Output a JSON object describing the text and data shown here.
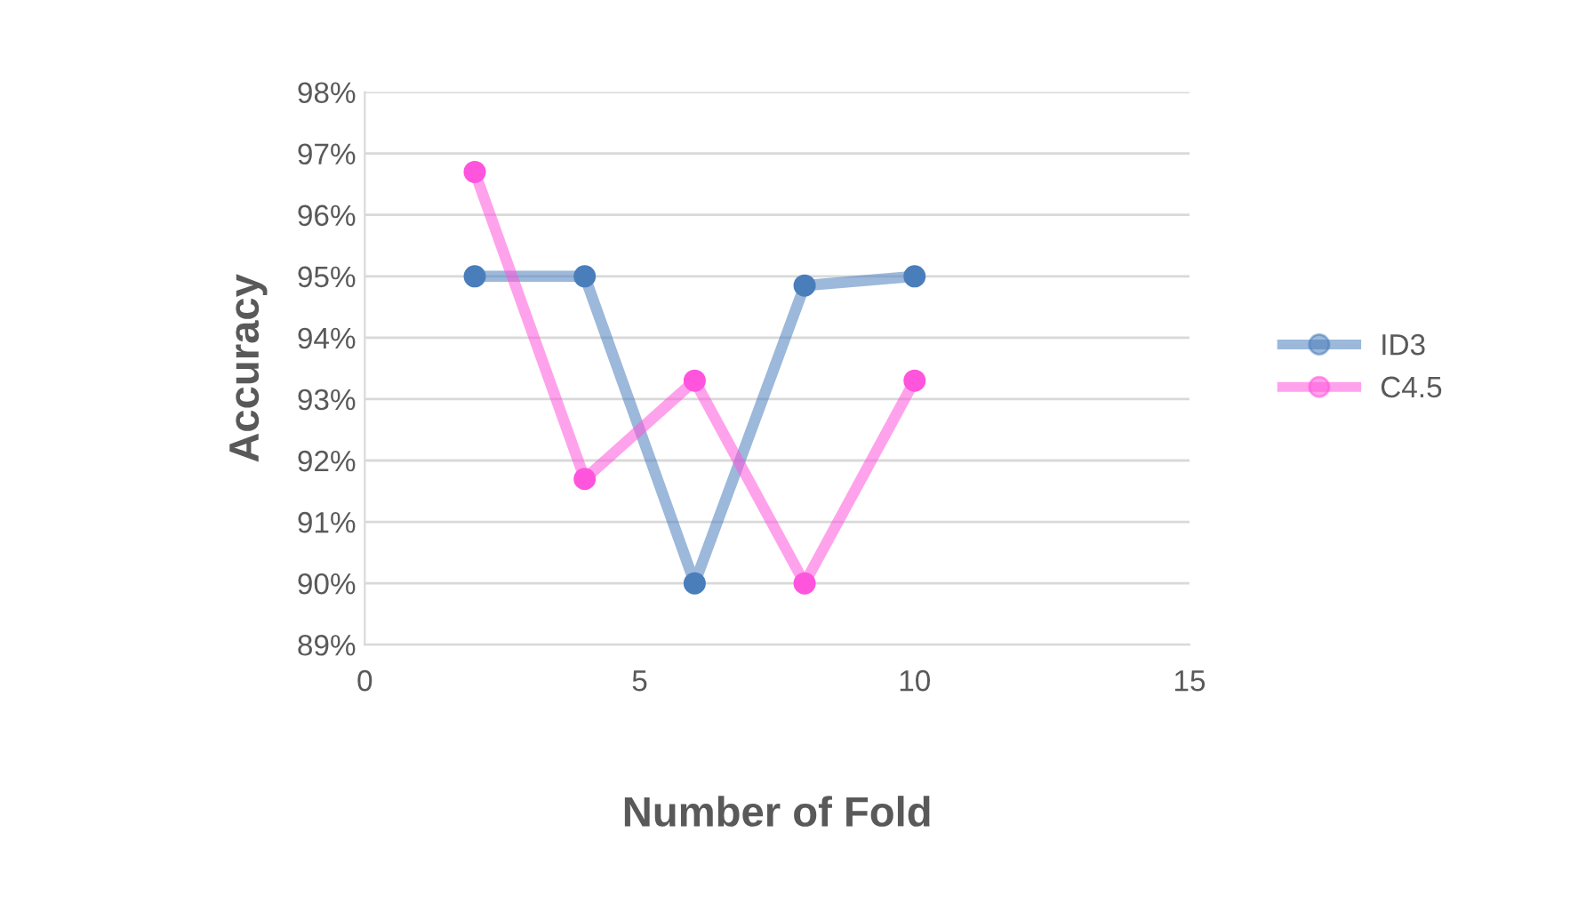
{
  "chart_data": {
    "type": "line",
    "xlabel": "Number of Fold",
    "ylabel": "Accuracy",
    "series": [
      {
        "name": "ID3",
        "color": "#4a7ebb",
        "x": [
          2,
          4,
          6,
          8,
          10
        ],
        "values": [
          95,
          95,
          90,
          94.85,
          95
        ]
      },
      {
        "name": "C4.5",
        "color": "#ff55dd",
        "x": [
          2,
          4,
          6,
          8,
          10
        ],
        "values": [
          96.7,
          91.7,
          93.3,
          90,
          93.3
        ]
      }
    ],
    "xlim": [
      0,
      15
    ],
    "xticks": [
      0,
      5,
      10,
      15
    ],
    "ylim": [
      89,
      98
    ],
    "yticks": [
      {
        "value": 89,
        "label": "89%"
      },
      {
        "value": 90,
        "label": "90%"
      },
      {
        "value": 91,
        "label": "91%"
      },
      {
        "value": 92,
        "label": "92%"
      },
      {
        "value": 93,
        "label": "93%"
      },
      {
        "value": 94,
        "label": "94%"
      },
      {
        "value": 95,
        "label": "95%"
      },
      {
        "value": 96,
        "label": "96%"
      },
      {
        "value": 97,
        "label": "97%"
      },
      {
        "value": 98,
        "label": "98%"
      }
    ],
    "grid": "y",
    "legend": "right",
    "marker": "circle",
    "line_style": "solid"
  }
}
